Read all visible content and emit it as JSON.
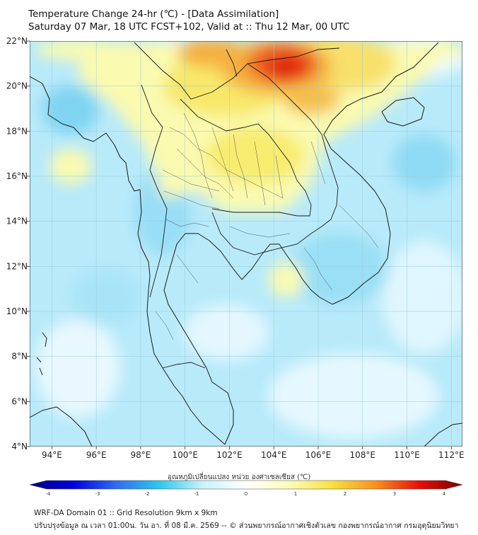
{
  "header": {
    "title": "Temperature Change 24-hr (℃) - [Data Assimilation]",
    "subtitle": "Saturday 07 Mar, 18 UTC FCST+102, Valid at :: Thu 12 Mar, 00 UTC"
  },
  "map": {
    "lon_range": [
      93,
      112.5
    ],
    "lat_range": [
      4,
      22
    ],
    "lon_ticks": [
      {
        "value": 94,
        "label": "94°E"
      },
      {
        "value": 96,
        "label": "96°E"
      },
      {
        "value": 98,
        "label": "98°E"
      },
      {
        "value": 100,
        "label": "100°E"
      },
      {
        "value": 102,
        "label": "102°E"
      },
      {
        "value": 104,
        "label": "104°E"
      },
      {
        "value": 106,
        "label": "106°E"
      },
      {
        "value": 108,
        "label": "108°E"
      },
      {
        "value": 110,
        "label": "110°E"
      },
      {
        "value": 112,
        "label": "112°E"
      }
    ],
    "lat_ticks": [
      {
        "value": 22,
        "label": "22°N"
      },
      {
        "value": 20,
        "label": "20°N"
      },
      {
        "value": 18,
        "label": "18°N"
      },
      {
        "value": 16,
        "label": "16°N"
      },
      {
        "value": 14,
        "label": "14°N"
      },
      {
        "value": 12,
        "label": "12°N"
      },
      {
        "value": 10,
        "label": "10°N"
      },
      {
        "value": 8,
        "label": "8°N"
      },
      {
        "value": 6,
        "label": "6°N"
      },
      {
        "value": 4,
        "label": "4°N"
      }
    ],
    "grid_lines": true,
    "colors": {
      "background_field": "#b8eafa",
      "coastline": "#1a1a1a",
      "gridline": "#9ccbd8"
    }
  },
  "colorbar": {
    "label": "อุณหภูมิเปลี่ยนแปลง หน่วย องศาเซลเซียส (℃)",
    "range": [
      -4,
      4
    ],
    "ticks": [
      {
        "value": -4,
        "label": "-4"
      },
      {
        "value": -3,
        "label": "-3"
      },
      {
        "value": -2,
        "label": "-2"
      },
      {
        "value": -1,
        "label": "-1"
      },
      {
        "value": 0,
        "label": "0"
      },
      {
        "value": 1,
        "label": "1"
      },
      {
        "value": 2,
        "label": "2"
      },
      {
        "value": 3,
        "label": "3"
      },
      {
        "value": 4,
        "label": "4"
      }
    ],
    "colors": [
      "#00007a",
      "#0000e0",
      "#2f6cf0",
      "#2ec8ec",
      "#c8f2fc",
      "#ffffff",
      "#fcfcb8",
      "#f8e040",
      "#f89020",
      "#e81008",
      "#7a0000"
    ]
  },
  "footer": {
    "line1": "WRF-DA Domain 01 :: Grid Resolution 9km x 9km",
    "line2": "ปรับปรุงข้อมูล ณ เวลา 01:00น. วัน อา. ที่ 08 มี.ค. 2569 -- © ส่วนพยากรณ์อากาศเชิงตัวเลข กองพยากรณ์อากาศ กรมอุตุนิยมวิทยา"
  }
}
